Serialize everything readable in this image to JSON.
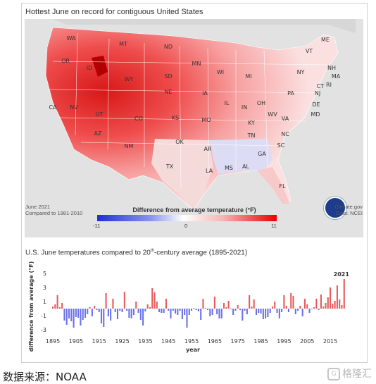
{
  "map": {
    "title": "Hottest June on record for contiguous United States",
    "date": "June 2021",
    "period": "Compared to 1981-2010",
    "scale_title": "Difference from average temperature (°F)",
    "scale_min": "-11",
    "scale_mid": "0",
    "scale_max": "11",
    "credit_site": "Climate.gov",
    "credit_data": "Data: NCEI",
    "state_labels": [
      "WA",
      "OR",
      "ID",
      "MT",
      "ND",
      "MN",
      "ME",
      "VT",
      "NH",
      "MA",
      "RI",
      "CT",
      "NY",
      "WI",
      "MI",
      "SD",
      "WY",
      "NV",
      "CA",
      "UT",
      "CO",
      "NE",
      "IA",
      "IL",
      "IN",
      "OH",
      "PA",
      "NJ",
      "DE",
      "MD",
      "WV",
      "VA",
      "KS",
      "MO",
      "KY",
      "TN",
      "NC",
      "SC",
      "AZ",
      "NM",
      "OK",
      "AR",
      "TX",
      "LA",
      "MS",
      "AL",
      "GA",
      "FL"
    ]
  },
  "chart_data": {
    "type": "bar",
    "title_main": "U.S. June temperatures compared to 20",
    "title_sup": "th",
    "title_rest": "-century average (1895-2021)",
    "xlabel": "year",
    "ylabel": "difference from average (°F)",
    "ylim": [
      -3,
      5
    ],
    "yticks": [
      5,
      3,
      1,
      -1,
      -3
    ],
    "xticks": [
      1895,
      1905,
      1915,
      1925,
      1935,
      1945,
      1955,
      1965,
      1975,
      1985,
      1995,
      2005,
      2015
    ],
    "highlight_label": "2021",
    "colors": {
      "positive": "#e85a5a",
      "negative": "#6a72e6"
    },
    "years_start": 1895,
    "values": [
      0.3,
      0.6,
      1.9,
      0.2,
      0.8,
      -1.7,
      -2.3,
      -1.4,
      -1.8,
      -2.7,
      -1.2,
      -1.3,
      -2.4,
      -1.6,
      -1.3,
      -0.8,
      0.2,
      -1.1,
      0.4,
      -0.2,
      -0.5,
      -2.1,
      -2.6,
      2.2,
      -1.1,
      -1.7,
      1.4,
      -0.5,
      -1.5,
      -0.3,
      -0.5,
      2.4,
      -0.3,
      -1.3,
      -1.4,
      -0.9,
      1.0,
      -0.6,
      -1.6,
      -2.4,
      -0.4,
      0.6,
      0.2,
      2.9,
      2.3,
      1.0,
      -0.5,
      -0.6,
      -0.6,
      1.4,
      -0.3,
      -1.4,
      -0.3,
      -0.7,
      -0.9,
      -0.3,
      -1.5,
      -0.9,
      -2.7,
      -0.9,
      -0.3,
      0.1,
      -0.2,
      -0.4,
      -1.6,
      1.4,
      0.1,
      -0.2,
      -1.1,
      -0.9,
      1.7,
      -0.8,
      -1.4,
      -1.4,
      0.8,
      0.2,
      1.1,
      -0.1,
      -0.9,
      -0.3,
      0.5,
      -0.2,
      -1.7,
      -0.3,
      -0.8,
      1.9,
      0.3,
      1.3,
      -0.9,
      -0.6,
      -0.7,
      -1.5,
      -1.4,
      -1.2,
      -0.6,
      0.3,
      1.0,
      -0.6,
      -1.4,
      -0.5,
      1.9,
      0.4,
      -0.5,
      2.2,
      1.8,
      -0.8,
      -0.3,
      0.4,
      -1.1,
      1.4,
      0.6,
      -0.6,
      -0.1,
      0.2,
      1.4,
      -0.2,
      2.0,
      0.3,
      0.8,
      1.6,
      3.0,
      0.7,
      1.1,
      3.3,
      1.3,
      0.5,
      4.2
    ]
  },
  "source": "数据来源：NOAA",
  "watermark": "格隆汇"
}
